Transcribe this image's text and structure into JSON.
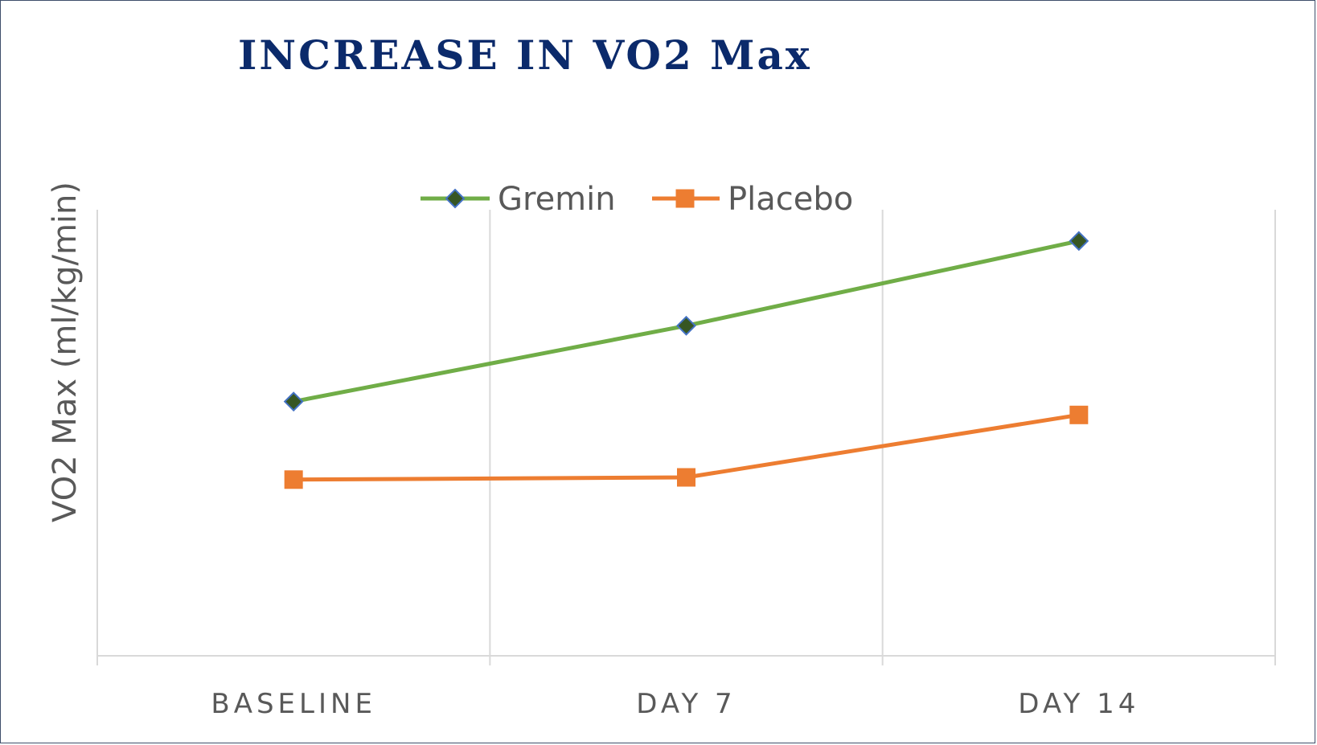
{
  "chart_data": {
    "type": "line",
    "title": "INCREASE IN VO2 Max",
    "xlabel": "",
    "ylabel": "VO2 Max (ml/kg/min)",
    "categories": [
      "BASELINE",
      "DAY 7",
      "DAY 14"
    ],
    "ylim": [
      0,
      100
    ],
    "y_ticks_shown": false,
    "grid": "vertical",
    "legend_position": "top",
    "series": [
      {
        "name": "Gremin",
        "values": [
          57,
          74,
          93
        ],
        "color": "#70ad47",
        "marker": "diamond",
        "marker_fill": "#375623",
        "marker_stroke": "#4472c4"
      },
      {
        "name": "Placebo",
        "values": [
          39.5,
          40,
          54
        ],
        "color": "#ed7d31",
        "marker": "square",
        "marker_fill": "#ed7d31",
        "marker_stroke": "#ed7d31"
      }
    ]
  },
  "colors": {
    "title": "#0b2a6b",
    "grid": "#d9d9d9",
    "text": "#595959",
    "frame": "#3e4f6b"
  }
}
